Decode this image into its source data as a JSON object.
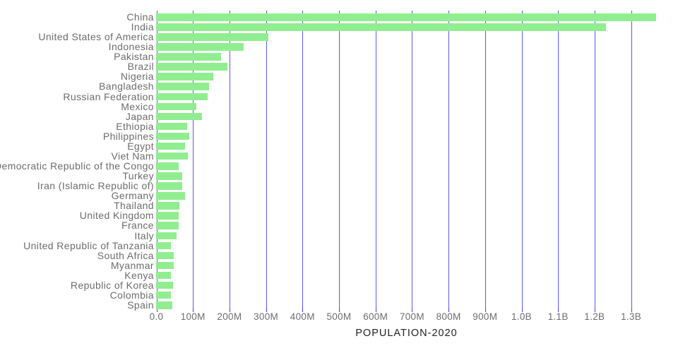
{
  "chart_data": {
    "type": "bar",
    "orientation": "horizontal",
    "title": "POPULATION-2020",
    "categories": [
      "China",
      "India",
      "United States of America",
      "Indonesia",
      "Pakistan",
      "Brazil",
      "Nigeria",
      "Bangladesh",
      "Russian Federation",
      "Mexico",
      "Japan",
      "Ethiopia",
      "Philippines",
      "Egypt",
      "Viet Nam",
      "Democratic Republic of the Congo",
      "Turkey",
      "Iran (Islamic Republic of)",
      "Germany",
      "Thailand",
      "United Kingdom",
      "France",
      "Italy",
      "United Republic of Tanzania",
      "South Africa",
      "Myanmar",
      "Kenya",
      "Republic of Korea",
      "Colombia",
      "Spain"
    ],
    "values_millions": [
      1370,
      1233,
      308,
      240,
      178,
      195,
      157,
      145,
      141,
      111,
      126,
      85,
      91,
      80,
      87,
      62,
      71,
      72,
      80,
      64,
      61,
      61,
      56,
      41,
      48,
      48,
      40,
      47,
      41,
      45
    ],
    "value_unit": "people (millions)",
    "x_axis": {
      "tick_values_millions": [
        0,
        100,
        200,
        300,
        400,
        500,
        600,
        700,
        800,
        900,
        1000,
        1100,
        1200,
        1300
      ],
      "tick_labels": [
        "0.0",
        "100M",
        "200M",
        "300M",
        "400M",
        "500M",
        "600M",
        "700M",
        "800M",
        "900M",
        "1.0B",
        "1.1B",
        "1.2B",
        "1.3B"
      ],
      "range_millions": [
        0,
        1429
      ]
    },
    "grid": true,
    "legend": false,
    "colors": {
      "bar": "#90EE90",
      "grid": "#3c3cf0",
      "category_text": "#6c6c6c",
      "tick_text": "#6c6c6c",
      "title_text": "#222222",
      "background": "#ffffff"
    }
  }
}
